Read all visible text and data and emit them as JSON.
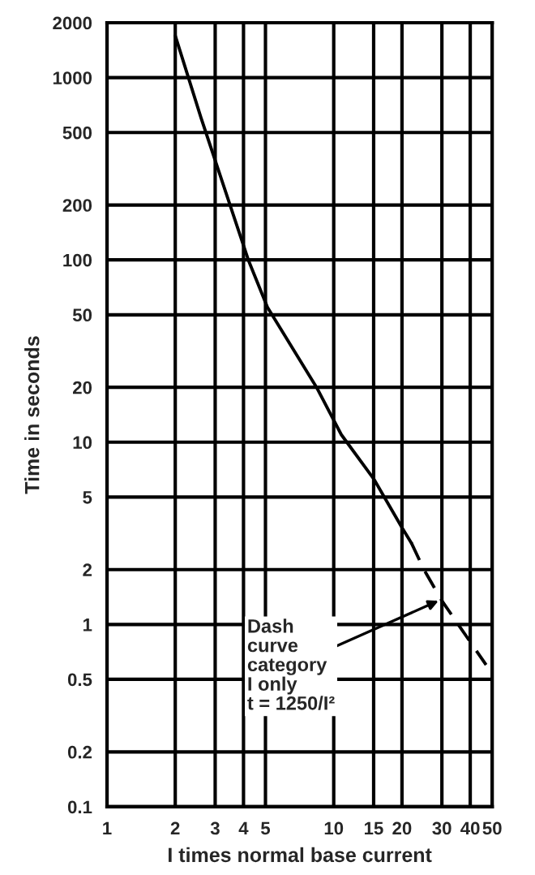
{
  "chart_data": {
    "type": "line",
    "xlabel": "I times normal base current",
    "ylabel": "Time in seconds",
    "log": "xy",
    "grid": true,
    "legend": false,
    "marker": "none",
    "xlim": [
      1,
      50
    ],
    "xticks": [
      1,
      2,
      3,
      4,
      5,
      10,
      15,
      20,
      30,
      40,
      50
    ],
    "ylim": [
      0.1,
      2000
    ],
    "yticks": [
      0.1,
      0.2,
      0.5,
      1,
      2,
      5,
      10,
      20,
      50,
      100,
      200,
      500,
      1000,
      2000
    ],
    "series": [
      {
        "color": "#000000",
        "line_style": "solid",
        "x": [
          2.0,
          2.6,
          4.2,
          5.1,
          8.4,
          10.8,
          15,
          20,
          22
        ],
        "values": [
          1700,
          600,
          100,
          55,
          20,
          11,
          6.3,
          3.4,
          2.8
        ]
      },
      {
        "color": "#000000",
        "line_style": "dashed",
        "x": [
          22,
          25,
          30,
          47
        ],
        "values": [
          2.8,
          2.0,
          1.35,
          0.6
        ]
      }
    ],
    "annotations": [
      {
        "text": "Dash\ncurve\ncategory\nI only\nt = 1250/I²",
        "x": 29,
        "y": 1.35
      }
    ]
  }
}
